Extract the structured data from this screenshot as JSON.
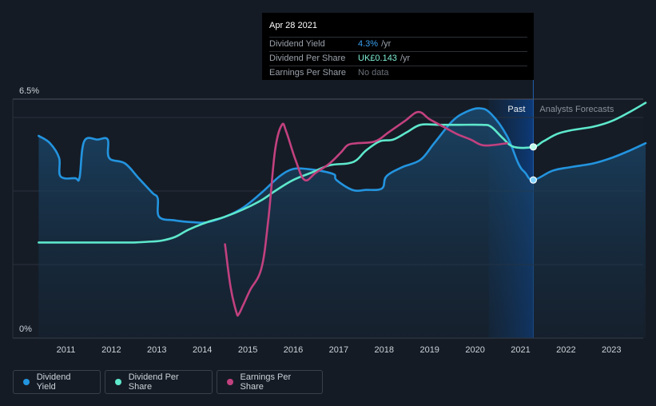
{
  "chart_data": {
    "type": "line",
    "y_axis": {
      "max_label": "6.5%",
      "min_label": "0%",
      "ylim": [
        0,
        6.5
      ]
    },
    "x_ticks": [
      "2011",
      "2012",
      "2013",
      "2014",
      "2015",
      "2016",
      "2017",
      "2018",
      "2019",
      "2020",
      "2021",
      "2022",
      "2023"
    ],
    "regions": {
      "past_label": "Past",
      "forecast_label": "Analysts Forecasts"
    },
    "tooltip": {
      "date": "Apr 28 2021",
      "rows": [
        {
          "label": "Dividend Yield",
          "value": "4.3%",
          "unit": "/yr"
        },
        {
          "label": "Dividend Per Share",
          "value": "UK£0.143",
          "unit": "/yr"
        },
        {
          "label": "Earnings Per Share",
          "value": "No data",
          "unit": ""
        }
      ]
    },
    "series": [
      {
        "name": "Dividend Yield",
        "color": "#2394df",
        "points": [
          [
            2010.4,
            5.5
          ],
          [
            2010.65,
            5.3
          ],
          [
            2010.85,
            4.9
          ],
          [
            2010.88,
            4.4
          ],
          [
            2011.2,
            4.35
          ],
          [
            2011.3,
            4.37
          ],
          [
            2011.4,
            5.35
          ],
          [
            2011.7,
            5.4
          ],
          [
            2011.92,
            5.4
          ],
          [
            2011.95,
            4.9
          ],
          [
            2012.3,
            4.75
          ],
          [
            2012.6,
            4.35
          ],
          [
            2012.9,
            3.95
          ],
          [
            2013.02,
            3.8
          ],
          [
            2013.05,
            3.3
          ],
          [
            2013.4,
            3.2
          ],
          [
            2013.8,
            3.15
          ],
          [
            2014.1,
            3.15
          ],
          [
            2014.5,
            3.3
          ],
          [
            2014.9,
            3.55
          ],
          [
            2015.3,
            3.95
          ],
          [
            2015.7,
            4.4
          ],
          [
            2016.0,
            4.6
          ],
          [
            2016.3,
            4.6
          ],
          [
            2016.6,
            4.55
          ],
          [
            2016.9,
            4.45
          ],
          [
            2016.95,
            4.3
          ],
          [
            2017.3,
            4.03
          ],
          [
            2017.6,
            4.03
          ],
          [
            2017.95,
            4.07
          ],
          [
            2018.05,
            4.4
          ],
          [
            2018.4,
            4.65
          ],
          [
            2018.8,
            4.85
          ],
          [
            2019.1,
            5.3
          ],
          [
            2019.5,
            5.9
          ],
          [
            2019.8,
            6.15
          ],
          [
            2020.1,
            6.25
          ],
          [
            2020.35,
            6.1
          ],
          [
            2020.7,
            5.5
          ],
          [
            2020.95,
            4.75
          ],
          [
            2021.1,
            4.5
          ],
          [
            2021.28,
            4.3
          ],
          [
            2021.7,
            4.55
          ],
          [
            2022.1,
            4.65
          ],
          [
            2022.6,
            4.75
          ],
          [
            2023.0,
            4.9
          ],
          [
            2023.4,
            5.1
          ],
          [
            2023.75,
            5.3
          ]
        ]
      },
      {
        "name": "Dividend Per Share",
        "color": "#5ee8cc",
        "points": [
          [
            2010.4,
            2.6
          ],
          [
            2011.0,
            2.6
          ],
          [
            2012.0,
            2.6
          ],
          [
            2012.5,
            2.6
          ],
          [
            2012.8,
            2.62
          ],
          [
            2013.1,
            2.65
          ],
          [
            2013.4,
            2.75
          ],
          [
            2013.7,
            2.95
          ],
          [
            2014.1,
            3.15
          ],
          [
            2014.5,
            3.3
          ],
          [
            2014.9,
            3.5
          ],
          [
            2015.3,
            3.75
          ],
          [
            2015.6,
            4.0
          ],
          [
            2016.0,
            4.3
          ],
          [
            2016.4,
            4.5
          ],
          [
            2016.8,
            4.7
          ],
          [
            2017.2,
            4.75
          ],
          [
            2017.4,
            4.85
          ],
          [
            2017.6,
            5.1
          ],
          [
            2017.9,
            5.35
          ],
          [
            2018.2,
            5.4
          ],
          [
            2018.5,
            5.6
          ],
          [
            2018.8,
            5.8
          ],
          [
            2019.2,
            5.8
          ],
          [
            2019.6,
            5.8
          ],
          [
            2020.15,
            5.8
          ],
          [
            2020.35,
            5.75
          ],
          [
            2020.6,
            5.45
          ],
          [
            2020.85,
            5.2
          ],
          [
            2021.28,
            5.2
          ],
          [
            2021.5,
            5.35
          ],
          [
            2021.8,
            5.55
          ],
          [
            2022.1,
            5.65
          ],
          [
            2022.6,
            5.75
          ],
          [
            2023.0,
            5.9
          ],
          [
            2023.4,
            6.15
          ],
          [
            2023.75,
            6.4
          ]
        ]
      },
      {
        "name": "Earnings Per Share",
        "color": "#c2417f",
        "points": [
          [
            2014.5,
            2.55
          ],
          [
            2014.62,
            1.4
          ],
          [
            2014.75,
            0.7
          ],
          [
            2014.8,
            0.65
          ],
          [
            2014.9,
            0.9
          ],
          [
            2015.05,
            1.3
          ],
          [
            2015.3,
            1.9
          ],
          [
            2015.45,
            3.2
          ],
          [
            2015.6,
            5.1
          ],
          [
            2015.75,
            5.8
          ],
          [
            2015.85,
            5.6
          ],
          [
            2016.05,
            4.85
          ],
          [
            2016.25,
            4.3
          ],
          [
            2016.5,
            4.5
          ],
          [
            2016.8,
            4.75
          ],
          [
            2017.05,
            5.05
          ],
          [
            2017.2,
            5.25
          ],
          [
            2017.4,
            5.3
          ],
          [
            2017.8,
            5.35
          ],
          [
            2018.1,
            5.6
          ],
          [
            2018.45,
            5.9
          ],
          [
            2018.75,
            6.15
          ],
          [
            2019.0,
            5.95
          ],
          [
            2019.3,
            5.75
          ],
          [
            2019.6,
            5.55
          ],
          [
            2019.9,
            5.4
          ],
          [
            2020.15,
            5.25
          ],
          [
            2020.4,
            5.25
          ],
          [
            2020.7,
            5.3
          ]
        ]
      }
    ],
    "highlight": {
      "x": 2021.28,
      "yield_value": 4.3,
      "dps_value": 5.2
    }
  },
  "legend": {
    "items": [
      {
        "label": "Dividend Yield",
        "color": "#2394df"
      },
      {
        "label": "Dividend Per Share",
        "color": "#5ee8cc"
      },
      {
        "label": "Earnings Per Share",
        "color": "#c2417f"
      }
    ]
  }
}
